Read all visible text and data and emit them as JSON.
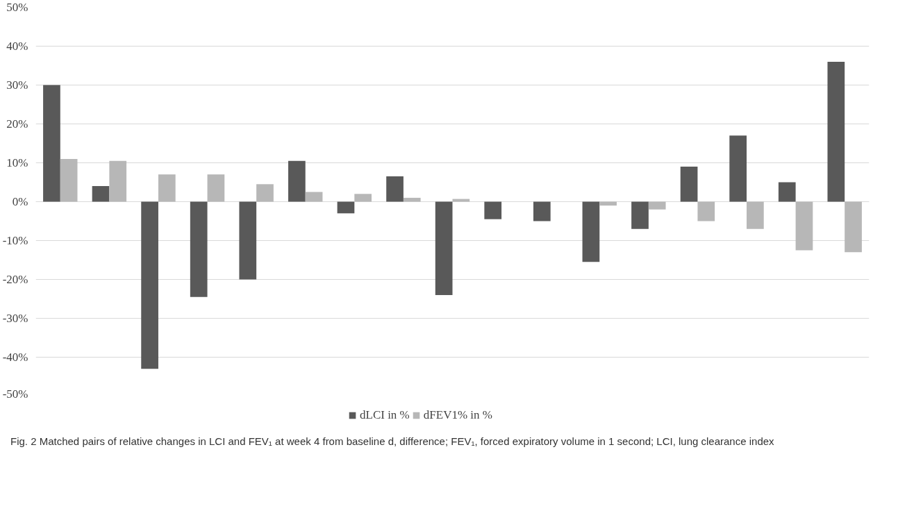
{
  "chart_data": {
    "type": "bar",
    "categories": [
      null,
      null,
      null,
      null,
      null,
      null,
      null,
      null,
      null,
      null,
      null,
      null,
      null,
      null,
      null,
      null,
      null
    ],
    "series": [
      {
        "name": "dLCI in %",
        "color": "#595959",
        "values": [
          30,
          4,
          -43,
          -24.5,
          -20,
          10.5,
          -3,
          6.5,
          -24,
          -4.5,
          -5,
          -15.5,
          -7,
          9,
          17,
          5,
          36
        ]
      },
      {
        "name": "dFEV1% in %",
        "color": "#b7b7b7",
        "values": [
          11,
          10.5,
          7,
          7,
          4.5,
          2.5,
          2,
          1,
          0.7,
          null,
          null,
          -1,
          -2,
          -5,
          -7,
          -12.5,
          -13
        ]
      }
    ],
    "ylim": [
      -50,
      50
    ],
    "yticks": [
      {
        "value": -50,
        "label": "-50%"
      },
      {
        "value": -40,
        "label": "-40%"
      },
      {
        "value": -30,
        "label": "-30%"
      },
      {
        "value": -20,
        "label": "-20%"
      },
      {
        "value": -10,
        "label": "-10%"
      },
      {
        "value": 0,
        "label": "0%"
      },
      {
        "value": 10,
        "label": "10%"
      },
      {
        "value": 20,
        "label": "20%"
      },
      {
        "value": 30,
        "label": "30%"
      },
      {
        "value": 40,
        "label": "40%"
      },
      {
        "value": 50,
        "label": "50%"
      }
    ],
    "grid": "y",
    "legend": "bottom",
    "annotations": [
      "Fig. 2 Matched pairs of relative changes in LCI and FEV₁ at week 4 from baseline d, difference; FEV₁, forced expiratory volume in 1 second; LCI, lung clearance index"
    ]
  }
}
